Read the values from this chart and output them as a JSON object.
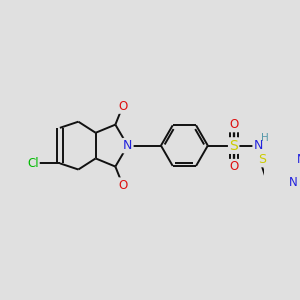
{
  "background_color": "#e0e0e0",
  "figsize": [
    3.0,
    3.0
  ],
  "dpi": 100,
  "bond_color": "#111111",
  "bond_lw": 1.4,
  "atom_bg": "#e0e0e0",
  "colors": {
    "C": "#111111",
    "N": "#2222dd",
    "O": "#dd1111",
    "S": "#cccc00",
    "Cl": "#00bb00",
    "H": "#5599aa"
  }
}
